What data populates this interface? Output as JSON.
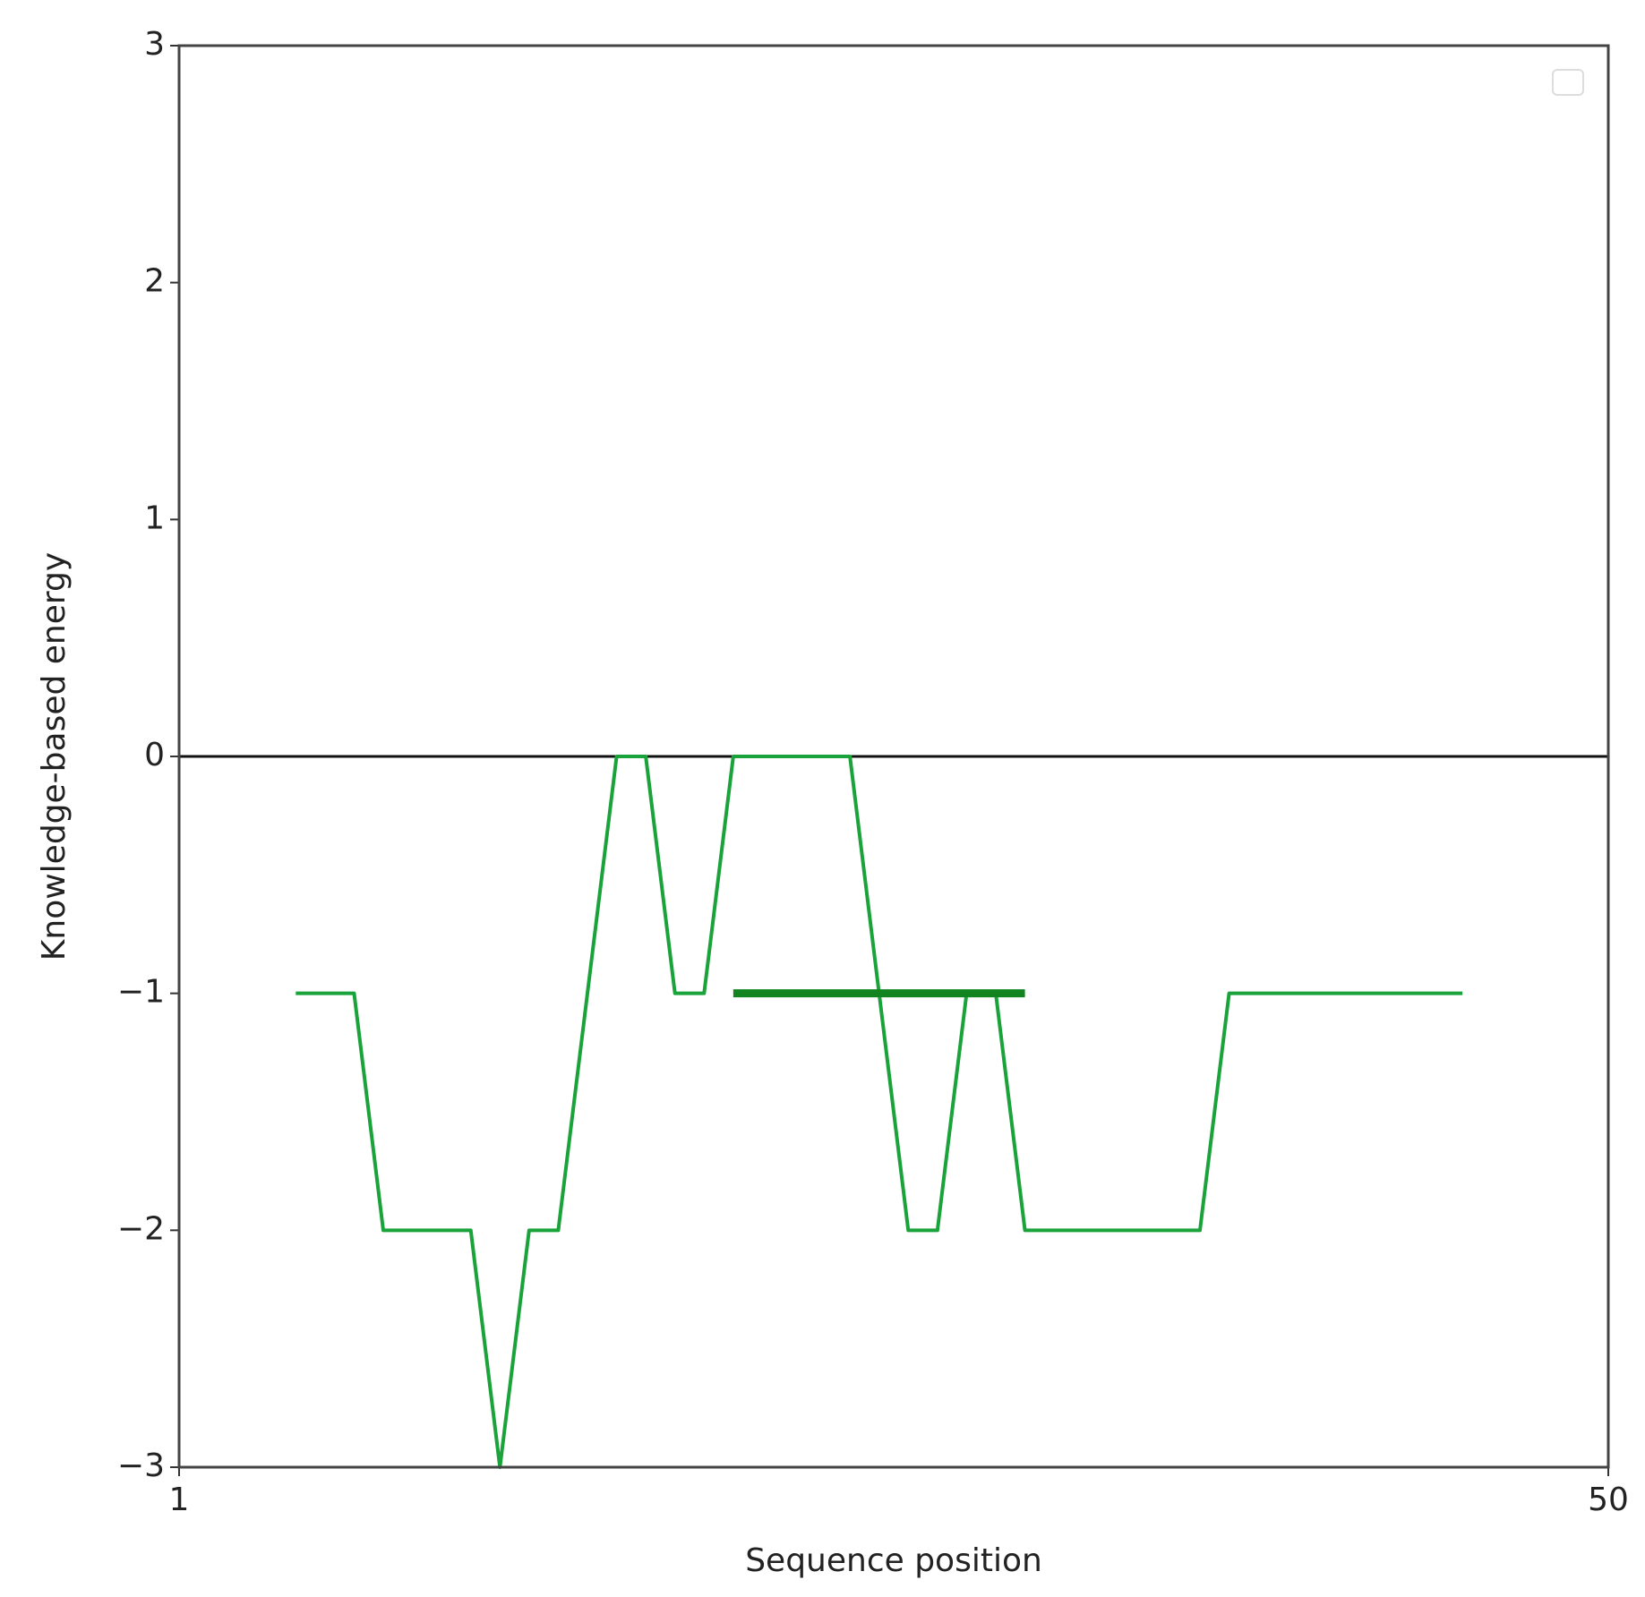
{
  "chart_data": {
    "type": "line",
    "xlabel": "Sequence position",
    "ylabel": "Knowledge-based energy",
    "series": [
      {
        "color": "#1aa33a",
        "width": 4,
        "x": [
          5,
          6,
          7,
          8,
          9,
          10,
          11,
          12,
          13,
          14,
          15,
          16,
          17,
          18,
          19,
          20,
          21,
          22,
          23,
          24,
          25,
          26,
          27,
          28,
          29,
          30,
          31,
          32,
          33,
          34,
          35,
          36,
          37,
          38,
          39,
          40,
          41,
          42,
          43,
          44,
          45
        ],
        "values": [
          -1,
          -1,
          -1,
          -2,
          -2,
          -2,
          -2,
          -3,
          -2,
          -2,
          -1,
          0,
          0,
          -1,
          -1,
          0,
          0,
          0,
          0,
          0,
          -1,
          -2,
          -2,
          -1,
          -1,
          -2,
          -2,
          -2,
          -2,
          -2,
          -2,
          -2,
          -1,
          -1,
          -1,
          -1,
          -1,
          -1,
          -1,
          -1,
          -1
        ]
      },
      {
        "color": "#11841f",
        "width": 9,
        "x": [
          20,
          30
        ],
        "values": [
          -1,
          -1
        ]
      }
    ],
    "hline": 0,
    "xlim": [
      1,
      50
    ],
    "xticks": [
      1,
      50
    ],
    "ylim": [
      -3,
      3
    ],
    "yticks": [
      {
        "value": -3,
        "label": "−3"
      },
      {
        "value": -2,
        "label": "−2"
      },
      {
        "value": -1,
        "label": "−1"
      },
      0,
      1,
      2,
      3
    ],
    "legend": "upper right"
  }
}
